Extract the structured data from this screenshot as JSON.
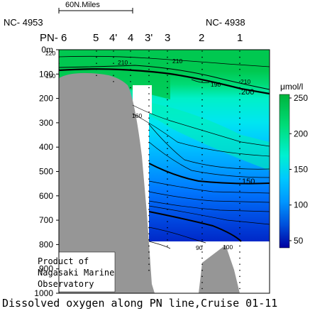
{
  "chart_data": {
    "type": "heatmap",
    "title": "Dissolved oxygen along PN line,Cruise 01-11",
    "unit": "μmol/l",
    "scale_label": "60N.Miles",
    "start_station": "NC- 4953",
    "end_station": "NC- 4938",
    "stations": [
      "PN- 6",
      "5",
      "4'",
      "4",
      "3'",
      "3",
      "2",
      "1"
    ],
    "ylim": [
      0,
      1000
    ],
    "y_ticks": [
      "0m",
      "100",
      "200",
      "300",
      "400",
      "500",
      "600",
      "700",
      "800",
      "900",
      "1000"
    ],
    "colorbar": {
      "range": [
        40,
        255
      ],
      "ticks": [
        "250",
        "200",
        "150",
        "100",
        "50"
      ]
    },
    "contour_labels": [
      "220",
      "210",
      "210",
      "150",
      "210",
      "190",
      "200",
      "160",
      "150",
      "90",
      "100"
    ],
    "credit": [
      "Product of",
      "Nagasaki Marine",
      "Observatory"
    ],
    "colors": {
      "high": "#00c850",
      "mid_green": "#00e6b4",
      "cyan": "#00d2ff",
      "mid_blue": "#0082ff",
      "low": "#0000a0",
      "bottom": "#969696"
    }
  }
}
